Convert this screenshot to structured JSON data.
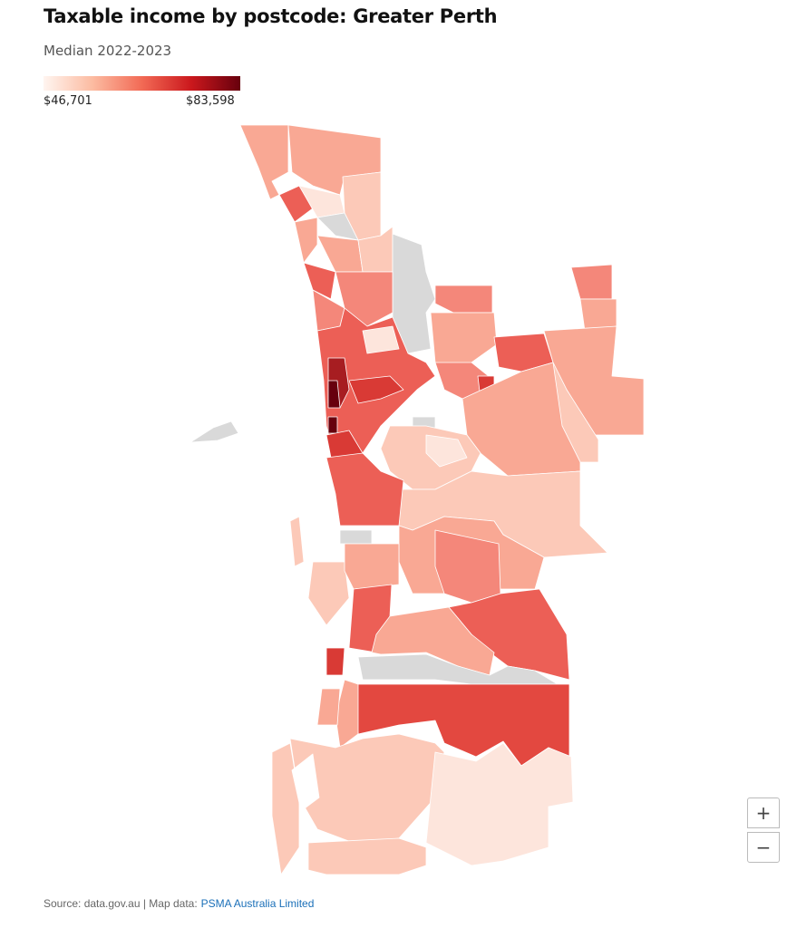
{
  "header": {
    "title": "Taxable income by postcode: Greater Perth",
    "subtitle": "Median 2022-2023"
  },
  "legend": {
    "min_label": "$46,701",
    "max_label": "$83,598"
  },
  "zoom": {
    "in": "+",
    "out": "−"
  },
  "footer": {
    "source": "Source: data.gov.au | Map data:",
    "link": "PSMA Australia Limited"
  }
}
